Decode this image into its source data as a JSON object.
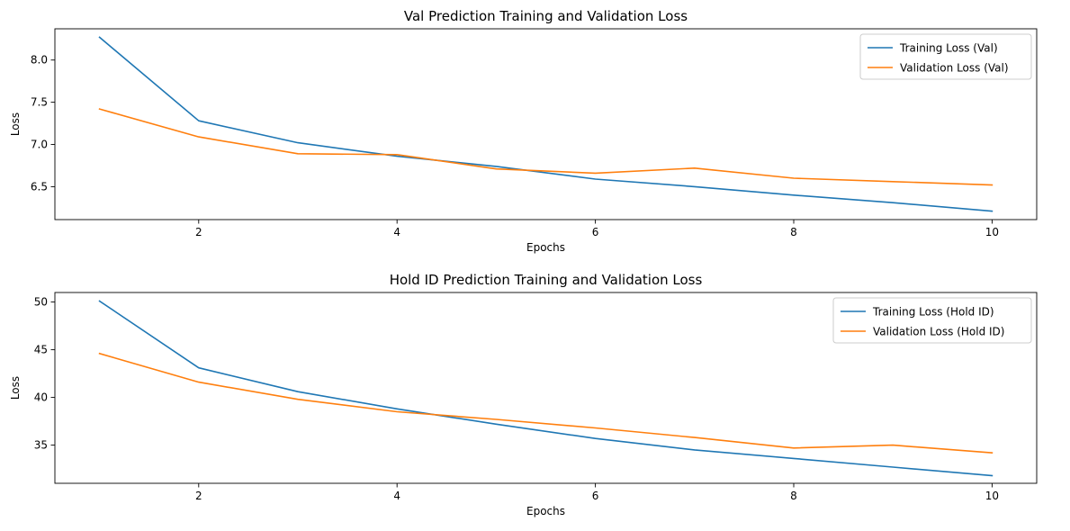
{
  "chart_data": [
    {
      "type": "line",
      "title": "Val Prediction Training and Validation Loss",
      "xlabel": "Epochs",
      "ylabel": "Loss",
      "xlim": [
        0.55,
        10.45
      ],
      "ylim": [
        6.11,
        8.37
      ],
      "xticks": [
        2,
        4,
        6,
        8,
        10
      ],
      "yticks": [
        6.5,
        7.0,
        7.5,
        8.0
      ],
      "ytick_labels": [
        "6.5",
        "7.0",
        "7.5",
        "8.0"
      ],
      "grid": false,
      "legend_position": "top-right",
      "x": [
        1,
        2,
        3,
        4,
        5,
        6,
        7,
        8,
        9,
        10
      ],
      "series": [
        {
          "name": "Training Loss (Val)",
          "color": "#1f77b4",
          "values": [
            8.27,
            7.28,
            7.02,
            6.86,
            6.74,
            6.59,
            6.5,
            6.4,
            6.31,
            6.21
          ]
        },
        {
          "name": "Validation Loss (Val)",
          "color": "#ff7f0e",
          "values": [
            7.42,
            7.09,
            6.89,
            6.88,
            6.71,
            6.66,
            6.72,
            6.6,
            6.56,
            6.52
          ]
        }
      ]
    },
    {
      "type": "line",
      "title": "Hold ID Prediction Training and Validation Loss",
      "xlabel": "Epochs",
      "ylabel": "Loss",
      "xlim": [
        0.55,
        10.45
      ],
      "ylim": [
        31.0,
        51.0
      ],
      "xticks": [
        2,
        4,
        6,
        8,
        10
      ],
      "yticks": [
        35,
        40,
        45,
        50
      ],
      "ytick_labels": [
        "35",
        "40",
        "45",
        "50"
      ],
      "grid": false,
      "legend_position": "top-right",
      "x": [
        1,
        2,
        3,
        4,
        5,
        6,
        7,
        8,
        9,
        10
      ],
      "series": [
        {
          "name": "Training Loss (Hold ID)",
          "color": "#1f77b4",
          "values": [
            50.1,
            43.1,
            40.6,
            38.8,
            37.2,
            35.7,
            34.5,
            33.6,
            32.7,
            31.8
          ]
        },
        {
          "name": "Validation Loss (Hold ID)",
          "color": "#ff7f0e",
          "values": [
            44.6,
            41.6,
            39.8,
            38.5,
            37.7,
            36.8,
            35.8,
            34.7,
            35.0,
            34.2
          ]
        }
      ]
    }
  ]
}
